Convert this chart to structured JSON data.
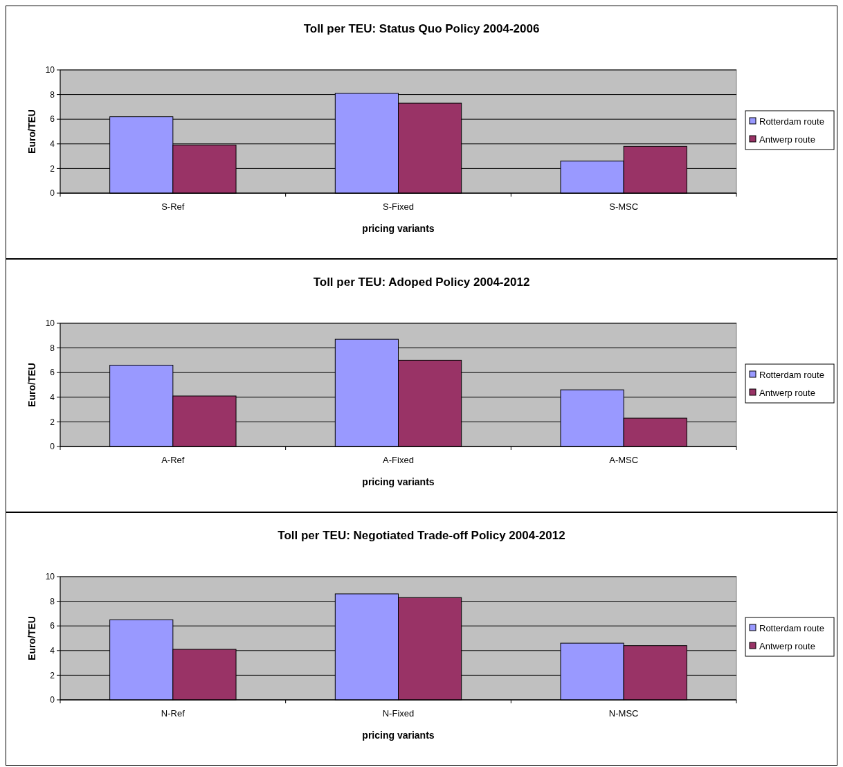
{
  "chart_data": [
    {
      "type": "bar",
      "title": "Toll per TEU: Status Quo Policy 2004-2006",
      "xlabel": "pricing variants",
      "ylabel": "Euro/TEU",
      "categories": [
        "S-Ref",
        "S-Fixed",
        "S-MSC"
      ],
      "series": [
        {
          "name": "Rotterdam route",
          "color": "#9999ff",
          "values": [
            6.2,
            8.1,
            2.6
          ]
        },
        {
          "name": "Antwerp route",
          "color": "#993366",
          "values": [
            3.9,
            7.3,
            3.8
          ]
        }
      ],
      "ylim": [
        0,
        10
      ],
      "yticks": [
        0,
        2,
        4,
        6,
        8,
        10
      ],
      "grid": "y",
      "legend": "right"
    },
    {
      "type": "bar",
      "title": "Toll per  TEU: Adoped Policy 2004-2012",
      "xlabel": "pricing variants",
      "ylabel": "Euro/TEU",
      "categories": [
        "A-Ref",
        "A-Fixed",
        "A-MSC"
      ],
      "series": [
        {
          "name": "Rotterdam route",
          "color": "#9999ff",
          "values": [
            6.6,
            8.7,
            4.6
          ]
        },
        {
          "name": "Antwerp route",
          "color": "#993366",
          "values": [
            4.1,
            7.0,
            2.3
          ]
        }
      ],
      "ylim": [
        0,
        10
      ],
      "yticks": [
        0,
        2,
        4,
        6,
        8,
        10
      ],
      "grid": "y",
      "legend": "right"
    },
    {
      "type": "bar",
      "title": "Toll per TEU: Negotiated Trade-off Policy 2004-2012",
      "xlabel": "pricing variants",
      "ylabel": "Euro/TEU",
      "categories": [
        "N-Ref",
        "N-Fixed",
        "N-MSC"
      ],
      "series": [
        {
          "name": "Rotterdam route",
          "color": "#9999ff",
          "values": [
            6.5,
            8.6,
            4.6
          ]
        },
        {
          "name": "Antwerp route",
          "color": "#993366",
          "values": [
            4.1,
            8.3,
            4.4
          ]
        }
      ],
      "ylim": [
        0,
        10
      ],
      "yticks": [
        0,
        2,
        4,
        6,
        8,
        10
      ],
      "grid": "y",
      "legend": "right"
    }
  ]
}
